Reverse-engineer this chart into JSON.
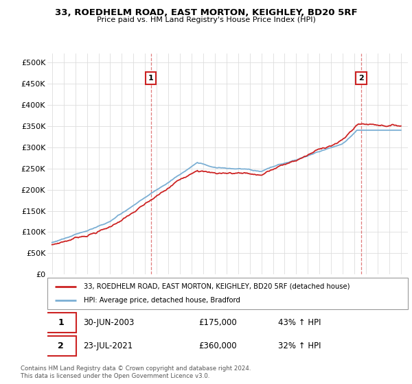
{
  "title": "33, ROEDHELM ROAD, EAST MORTON, KEIGHLEY, BD20 5RF",
  "subtitle": "Price paid vs. HM Land Registry's House Price Index (HPI)",
  "ylabel_ticks": [
    "£0",
    "£50K",
    "£100K",
    "£150K",
    "£200K",
    "£250K",
    "£300K",
    "£350K",
    "£400K",
    "£450K",
    "£500K"
  ],
  "ytick_values": [
    0,
    50000,
    100000,
    150000,
    200000,
    250000,
    300000,
    350000,
    400000,
    450000,
    500000
  ],
  "ylim": [
    0,
    520000
  ],
  "hpi_color": "#7bafd4",
  "price_color": "#cc2222",
  "sale1_year": 2003.5,
  "sale1_price": 175000,
  "sale2_year": 2021.58,
  "sale2_price": 360000,
  "legend_line1": "33, ROEDHELM ROAD, EAST MORTON, KEIGHLEY, BD20 5RF (detached house)",
  "legend_line2": "HPI: Average price, detached house, Bradford",
  "note1_label": "1",
  "note1_date": "30-JUN-2003",
  "note1_price": "£175,000",
  "note1_hpi": "43% ↑ HPI",
  "note2_label": "2",
  "note2_date": "23-JUL-2021",
  "note2_price": "£360,000",
  "note2_hpi": "32% ↑ HPI",
  "footer": "Contains HM Land Registry data © Crown copyright and database right 2024.\nThis data is licensed under the Open Government Licence v3.0.",
  "xstart": 1995,
  "xend": 2025
}
